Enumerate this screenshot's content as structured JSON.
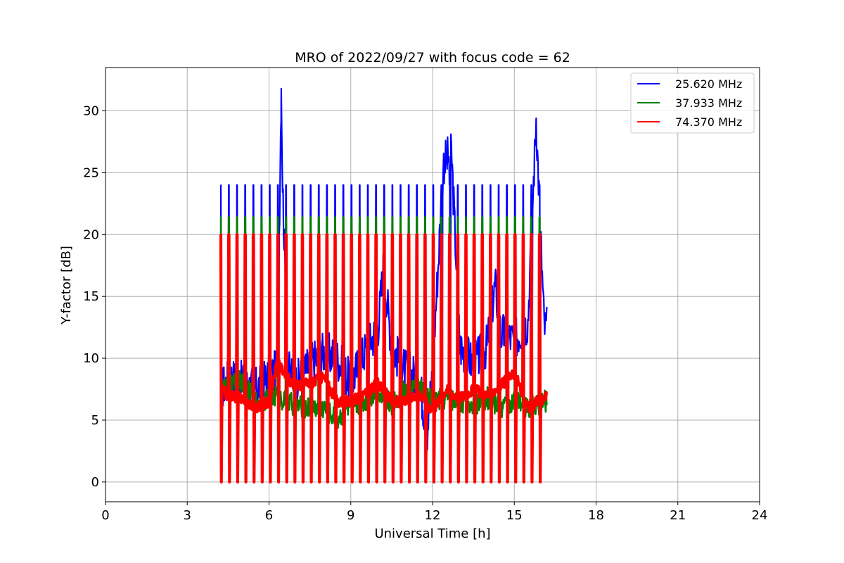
{
  "chart_data": {
    "type": "line",
    "title": "MRO of 2022/09/27 with focus code = 62",
    "xlabel": "Universal Time [h]",
    "ylabel": "Y-factor [dB]",
    "xlim": [
      0,
      24
    ],
    "ylim": [
      -1.6,
      33.5
    ],
    "xticks": [
      0,
      3,
      6,
      9,
      12,
      15,
      18,
      21,
      24
    ],
    "yticks": [
      0,
      5,
      10,
      15,
      20,
      25,
      30
    ],
    "grid": true,
    "legend_position": "top-right",
    "calibration_cycle": {
      "start_h": 4.22,
      "end_h": 16.1,
      "period_h": 0.3,
      "spike_tops_db": {
        "25.620 MHz": 24.0,
        "37.933 MHz": 21.4,
        "74.370 MHz": 20.0
      },
      "spike_floor_db": 0.0
    },
    "series": [
      {
        "name": "25.620 MHz",
        "color": "#0000ff",
        "x": [
          4.22,
          4.6,
          5.0,
          5.5,
          6.0,
          6.3,
          6.45,
          6.5,
          6.7,
          7.0,
          7.5,
          8.0,
          8.5,
          9.0,
          9.5,
          10.0,
          10.2,
          10.5,
          11.0,
          11.5,
          11.8,
          12.0,
          12.4,
          12.7,
          13.0,
          13.5,
          14.0,
          14.3,
          14.5,
          15.0,
          15.5,
          15.8,
          16.1
        ],
        "values": [
          7.5,
          8.5,
          8.0,
          7.5,
          8.5,
          9.0,
          31.8,
          24.0,
          9.0,
          8.0,
          9.5,
          10.5,
          10.0,
          8.0,
          10.5,
          12.5,
          17.5,
          11.0,
          9.0,
          8.5,
          4.0,
          9.0,
          25.8,
          26.5,
          11.0,
          9.5,
          11.0,
          16.0,
          12.0,
          11.5,
          13.0,
          29.4,
          12.5
        ]
      },
      {
        "name": "37.933 MHz",
        "color": "#008000",
        "x": [
          4.22,
          4.6,
          5.0,
          5.5,
          6.0,
          6.3,
          6.6,
          7.0,
          7.5,
          8.0,
          8.5,
          9.0,
          9.5,
          10.0,
          10.5,
          11.0,
          11.5,
          12.0,
          12.5,
          13.0,
          13.5,
          14.0,
          14.5,
          15.0,
          15.5,
          16.1
        ],
        "values": [
          7.5,
          7.8,
          8.2,
          6.5,
          6.8,
          7.0,
          6.5,
          6.2,
          6.0,
          6.0,
          5.0,
          6.2,
          6.5,
          7.5,
          6.2,
          7.5,
          7.8,
          6.5,
          6.8,
          6.5,
          6.2,
          6.8,
          6.0,
          6.5,
          6.0,
          6.5
        ]
      },
      {
        "name": "74.370 MHz",
        "color": "#ff0000",
        "x": [
          4.22,
          4.5,
          5.0,
          5.5,
          6.0,
          6.3,
          6.6,
          7.0,
          7.5,
          8.0,
          8.5,
          9.0,
          9.5,
          10.0,
          10.5,
          11.0,
          11.5,
          12.0,
          12.5,
          13.0,
          13.5,
          14.0,
          14.5,
          15.0,
          15.5,
          16.1
        ],
        "values": [
          7.5,
          7.0,
          6.8,
          6.0,
          6.5,
          9.8,
          8.5,
          7.8,
          8.0,
          8.5,
          6.5,
          6.5,
          7.0,
          8.0,
          6.5,
          6.5,
          7.2,
          5.8,
          7.5,
          6.8,
          7.5,
          7.0,
          7.8,
          8.8,
          6.0,
          6.8
        ]
      }
    ]
  }
}
